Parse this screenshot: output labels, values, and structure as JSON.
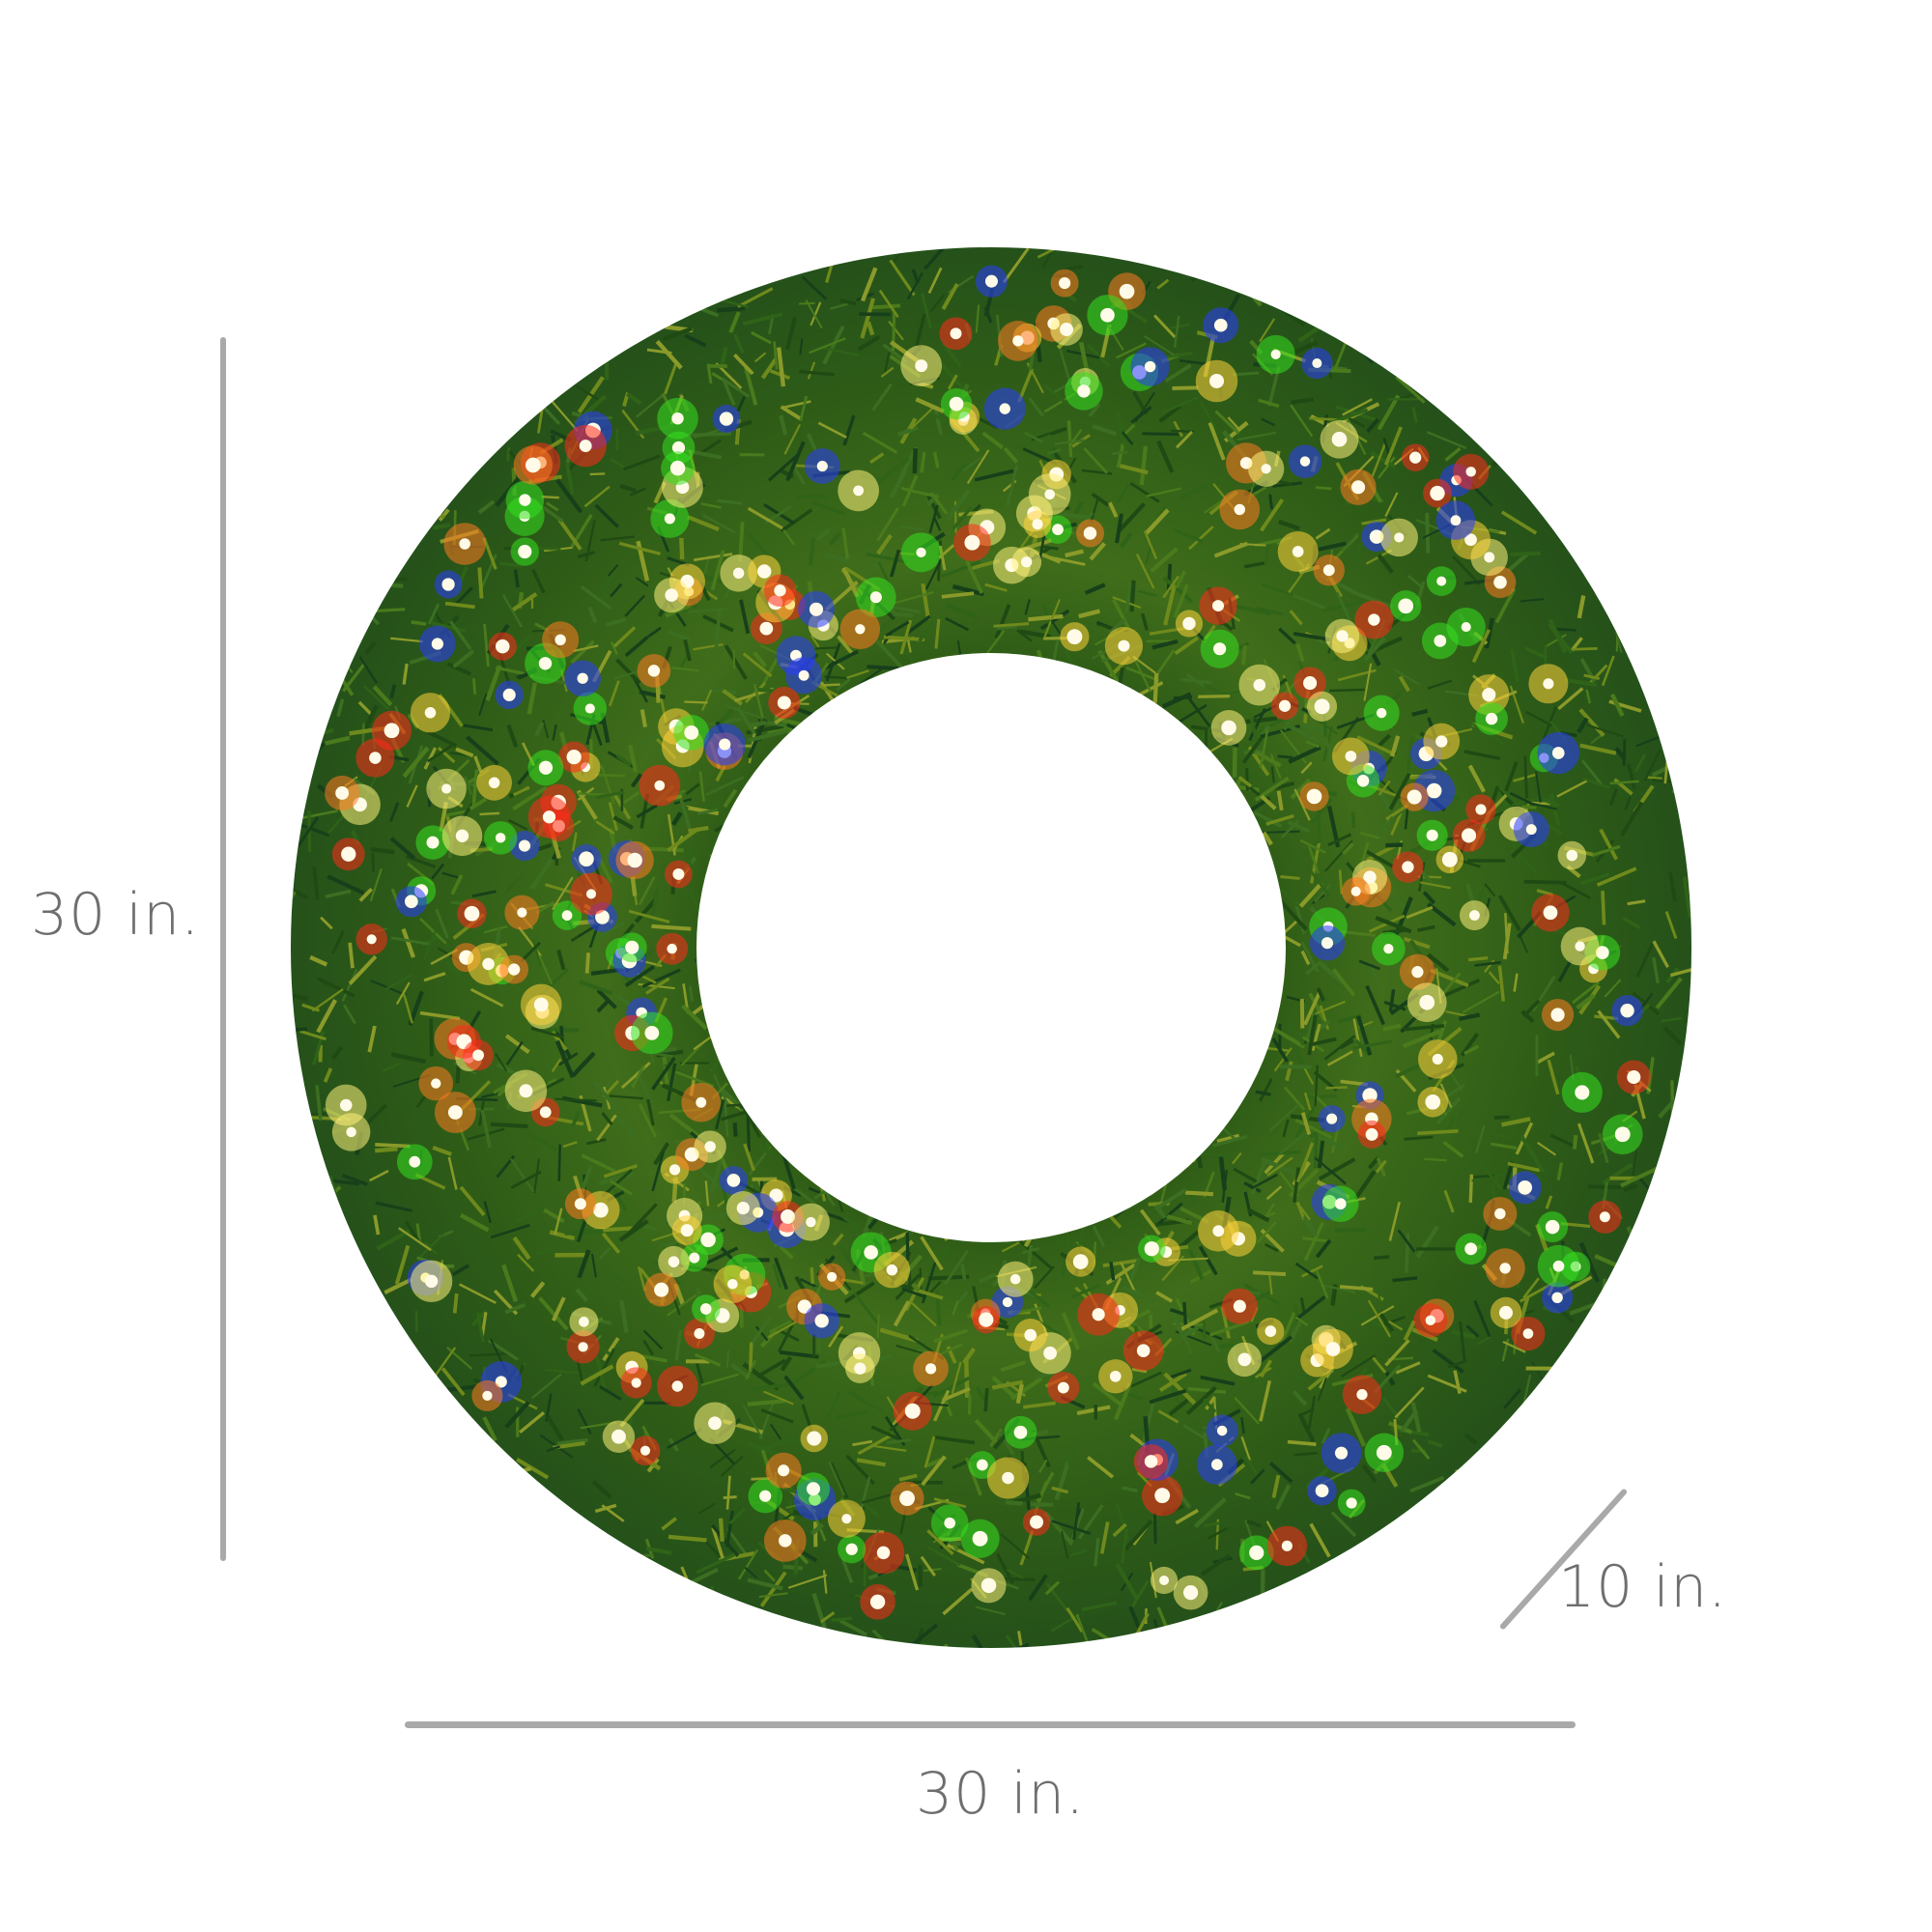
{
  "product": "prelit-christmas-wreath",
  "dimensions": {
    "height_label": "30 in.",
    "width_label": "30 in.",
    "depth_label": "10 in."
  },
  "colors": {
    "dimension_line": "#a9a9a9",
    "label_text": "#6e6e6e",
    "foliage_dark": "#1f4a14",
    "foliage_light": "#6f8a1c",
    "lights": [
      "#ff2a1a",
      "#2a3cff",
      "#35e020",
      "#ffd23a",
      "#ff7a20",
      "#fff07a"
    ]
  }
}
